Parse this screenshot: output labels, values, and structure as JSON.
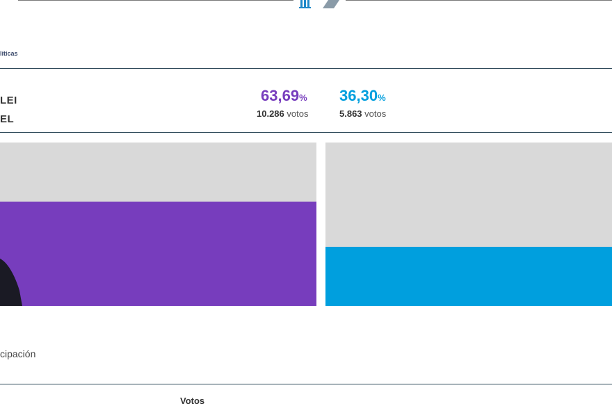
{
  "header": {
    "section_label": "líticas"
  },
  "candidates": [
    {
      "name_fragment": "LEI",
      "percent": "63,69",
      "percent_symbol": "%",
      "votes_number": "10.286",
      "votes_word": "votos",
      "share": 0.6369,
      "color": "#773dbd"
    },
    {
      "name_fragment": "EL",
      "percent": "36,30",
      "percent_symbol": "%",
      "votes_number": "5.863",
      "votes_word": "votos",
      "share": 0.363,
      "color": "#009fde"
    }
  ],
  "footer": {
    "participacion_label": "cipación",
    "table_header_votos": "Votos"
  },
  "colors": {
    "panel_bg": "#d9d9d9",
    "rule": "#2f4a5a"
  }
}
